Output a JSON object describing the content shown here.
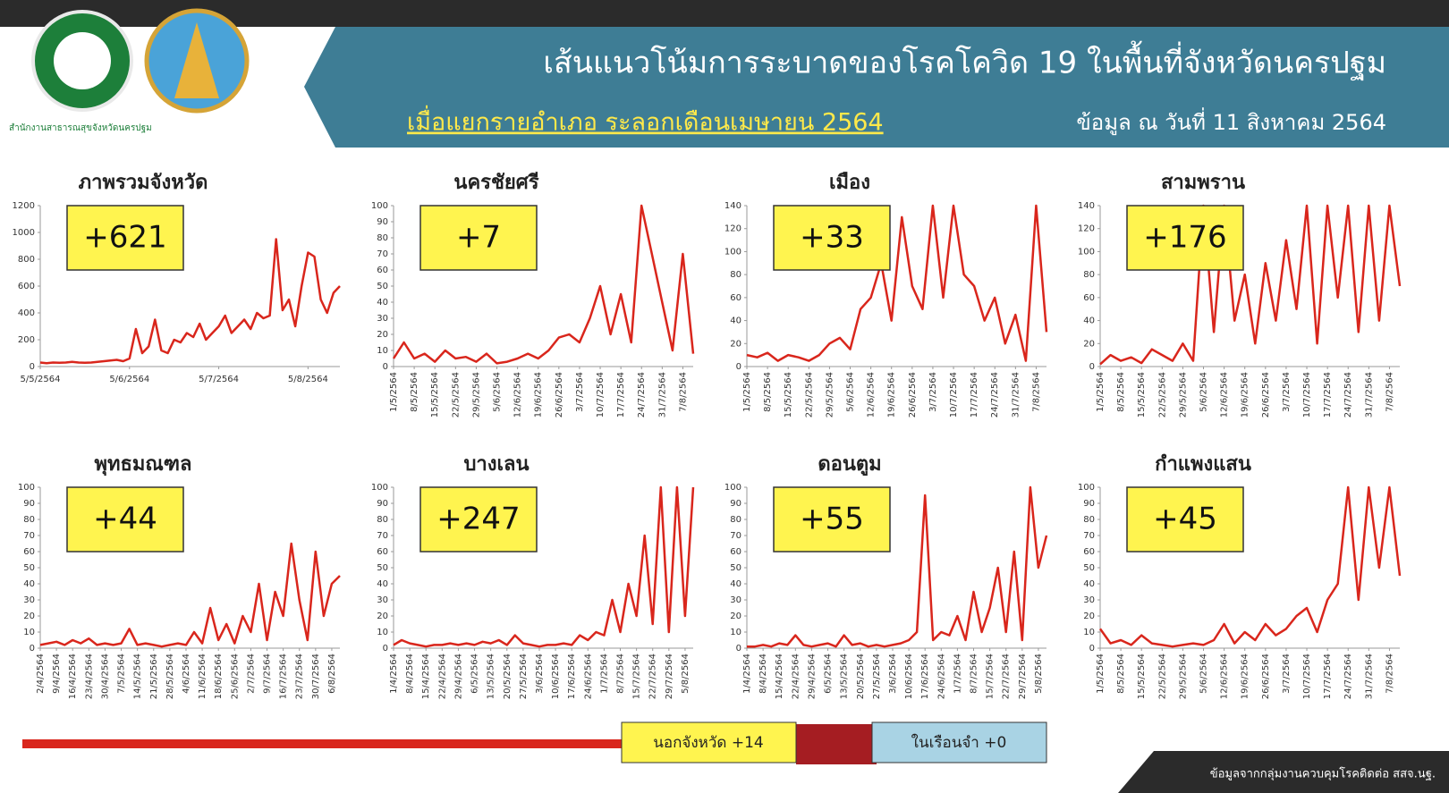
{
  "header": {
    "office": "สำนักงานสาธารณสุขจังหวัดนครปฐม",
    "title": "เส้นแนวโน้มการระบาดของโรคโควิด  19 ในพื้นที่จังหวัดนครปฐม",
    "subtitle": "เมื่อแยกรายอำเภอ ระลอกเดือนเมษายน 2564",
    "date": "ข้อมูล ณ วันที่ 11 สิงหาคม 2564"
  },
  "footer": {
    "outside": "นอกจังหวัด +14",
    "prison": "ในเรือนจำ +0",
    "source": "ข้อมูลจากกลุ่มงานควบคุมโรคติดต่อ สสจ.นฐ."
  },
  "chart_data": [
    {
      "type": "line",
      "title": "ภาพรวมจังหวัด",
      "annotation": "+621",
      "color": "#d9261c",
      "categories": [
        "5/5/2564",
        null,
        null,
        null,
        null,
        null,
        null,
        null,
        null,
        null,
        null,
        null,
        null,
        null,
        "5/6/2564",
        null,
        null,
        null,
        null,
        null,
        null,
        null,
        null,
        null,
        null,
        null,
        null,
        null,
        "5/7/2564",
        null,
        null,
        null,
        null,
        null,
        null,
        null,
        null,
        null,
        null,
        null,
        null,
        null,
        "5/8/2564",
        null,
        null,
        null,
        null,
        null
      ],
      "values": [
        30,
        25,
        30,
        28,
        30,
        35,
        30,
        28,
        30,
        35,
        40,
        45,
        50,
        40,
        60,
        280,
        100,
        150,
        350,
        120,
        100,
        200,
        180,
        250,
        220,
        320,
        200,
        250,
        300,
        380,
        250,
        300,
        350,
        280,
        400,
        360,
        380,
        950,
        420,
        500,
        300,
        600,
        850,
        820,
        500,
        400,
        550,
        600
      ],
      "ylim": [
        0,
        1200
      ],
      "yticks": [
        0,
        200,
        400,
        600,
        800,
        1000,
        1200
      ]
    },
    {
      "type": "line",
      "title": "นครชัยศรี",
      "annotation": "+7",
      "color": "#d9261c",
      "categories": [
        "1/5/2564",
        null,
        "8/5/2564",
        null,
        "15/5/2564",
        null,
        "22/5/2564",
        null,
        "29/5/2564",
        null,
        "5/6/2564",
        null,
        "12/6/2564",
        null,
        "19/6/2564",
        null,
        "26/6/2564",
        null,
        "3/7/2564",
        null,
        "10/7/2564",
        null,
        "17/7/2564",
        null,
        "24/7/2564",
        null,
        "31/7/2564",
        null,
        "7/8/2564",
        null
      ],
      "values": [
        5,
        15,
        5,
        8,
        3,
        10,
        5,
        6,
        3,
        8,
        2,
        3,
        5,
        8,
        5,
        10,
        18,
        20,
        15,
        30,
        50,
        20,
        45,
        15,
        100,
        70,
        40,
        10,
        70,
        8
      ],
      "ylim": [
        0,
        100
      ],
      "yticks": [
        0,
        10,
        20,
        30,
        40,
        50,
        60,
        70,
        80,
        90,
        100
      ]
    },
    {
      "type": "line",
      "title": "เมือง",
      "annotation": "+33",
      "color": "#d9261c",
      "categories": [
        "1/5/2564",
        null,
        "8/5/2564",
        null,
        "15/5/2564",
        null,
        "22/5/2564",
        null,
        "29/5/2564",
        null,
        "5/6/2564",
        null,
        "12/6/2564",
        null,
        "19/6/2564",
        null,
        "26/6/2564",
        null,
        "3/7/2564",
        null,
        "10/7/2564",
        null,
        "17/7/2564",
        null,
        "24/7/2564",
        null,
        "31/7/2564",
        null,
        "7/8/2564",
        null
      ],
      "values": [
        10,
        8,
        12,
        5,
        10,
        8,
        5,
        10,
        20,
        25,
        15,
        50,
        60,
        90,
        40,
        130,
        70,
        50,
        140,
        60,
        140,
        80,
        70,
        40,
        60,
        20,
        45,
        5,
        140,
        30
      ],
      "ylim": [
        0,
        140
      ],
      "yticks": [
        0,
        20,
        40,
        60,
        80,
        100,
        120,
        140
      ]
    },
    {
      "type": "line",
      "title": "สามพราน",
      "annotation": "+176",
      "color": "#d9261c",
      "categories": [
        "1/5/2564",
        null,
        "8/5/2564",
        null,
        "15/5/2564",
        null,
        "22/5/2564",
        null,
        "29/5/2564",
        null,
        "5/6/2564",
        null,
        "12/6/2564",
        null,
        "19/6/2564",
        null,
        "26/6/2564",
        null,
        "3/7/2564",
        null,
        "10/7/2564",
        null,
        "17/7/2564",
        null,
        "24/7/2564",
        null,
        "31/7/2564",
        null,
        "7/8/2564",
        null
      ],
      "values": [
        2,
        10,
        5,
        8,
        3,
        15,
        10,
        5,
        20,
        5,
        140,
        30,
        140,
        40,
        80,
        20,
        90,
        40,
        110,
        50,
        140,
        20,
        140,
        60,
        140,
        30,
        140,
        40,
        140,
        70
      ],
      "ylim": [
        0,
        140
      ],
      "yticks": [
        0,
        20,
        40,
        60,
        80,
        100,
        120,
        140
      ]
    },
    {
      "type": "line",
      "title": "พุทธมณฑล",
      "annotation": "+44",
      "color": "#d9261c",
      "categories": [
        "2/4/2564",
        null,
        "9/4/2564",
        null,
        "16/4/2564",
        null,
        "23/4/2564",
        null,
        "30/4/2564",
        null,
        "7/5/2564",
        null,
        "14/5/2564",
        null,
        "21/5/2564",
        null,
        "28/5/2564",
        null,
        "4/6/2564",
        null,
        "11/6/2564",
        null,
        "18/6/2564",
        null,
        "25/6/2564",
        null,
        "2/7/2564",
        null,
        "9/7/2564",
        null,
        "16/7/2564",
        null,
        "23/7/2564",
        null,
        "30/7/2564",
        null,
        "6/8/2564",
        null
      ],
      "values": [
        2,
        3,
        4,
        2,
        5,
        3,
        6,
        2,
        3,
        2,
        3,
        12,
        2,
        3,
        2,
        1,
        2,
        3,
        2,
        10,
        3,
        25,
        5,
        15,
        3,
        20,
        10,
        40,
        5,
        35,
        20,
        65,
        30,
        5,
        60,
        20,
        40,
        45
      ],
      "ylim": [
        0,
        100
      ],
      "yticks": [
        0,
        10,
        20,
        30,
        40,
        50,
        60,
        70,
        80,
        90,
        100
      ]
    },
    {
      "type": "line",
      "title": "บางเลน",
      "annotation": "+247",
      "color": "#d9261c",
      "categories": [
        "1/4/2564",
        null,
        "8/4/2564",
        null,
        "15/4/2564",
        null,
        "22/4/2564",
        null,
        "29/4/2564",
        null,
        "6/5/2564",
        null,
        "13/5/2564",
        null,
        "20/5/2564",
        null,
        "27/5/2564",
        null,
        "3/6/2564",
        null,
        "10/6/2564",
        null,
        "17/6/2564",
        null,
        "24/6/2564",
        null,
        "1/7/2564",
        null,
        "8/7/2564",
        null,
        "15/7/2564",
        null,
        "22/7/2564",
        null,
        "29/7/2564",
        null,
        "5/8/2564",
        null
      ],
      "values": [
        2,
        5,
        3,
        2,
        1,
        2,
        2,
        3,
        2,
        3,
        2,
        4,
        3,
        5,
        2,
        8,
        3,
        2,
        1,
        2,
        2,
        3,
        2,
        8,
        5,
        10,
        8,
        30,
        10,
        40,
        20,
        70,
        15,
        100,
        10,
        100,
        20,
        100
      ],
      "ylim": [
        0,
        100
      ],
      "yticks": [
        0,
        10,
        20,
        30,
        40,
        50,
        60,
        70,
        80,
        90,
        100
      ]
    },
    {
      "type": "line",
      "title": "ดอนตูม",
      "annotation": "+55",
      "color": "#d9261c",
      "categories": [
        "1/4/2564",
        null,
        "8/4/2564",
        null,
        "15/4/2564",
        null,
        "22/4/2564",
        null,
        "29/4/2564",
        null,
        "6/5/2564",
        null,
        "13/5/2564",
        null,
        "20/5/2564",
        null,
        "27/5/2564",
        null,
        "3/6/2564",
        null,
        "10/6/2564",
        null,
        "17/6/2564",
        null,
        "24/6/2564",
        null,
        "1/7/2564",
        null,
        "8/7/2564",
        null,
        "15/7/2564",
        null,
        "22/7/2564",
        null,
        "29/7/2564",
        null,
        "5/8/2564",
        null
      ],
      "values": [
        1,
        1,
        2,
        1,
        3,
        2,
        8,
        2,
        1,
        2,
        3,
        1,
        8,
        2,
        3,
        1,
        2,
        1,
        2,
        3,
        5,
        10,
        95,
        5,
        10,
        8,
        20,
        5,
        35,
        10,
        25,
        50,
        10,
        60,
        5,
        100,
        50,
        70
      ],
      "ylim": [
        0,
        100
      ],
      "yticks": [
        0,
        10,
        20,
        30,
        40,
        50,
        60,
        70,
        80,
        90,
        100
      ]
    },
    {
      "type": "line",
      "title": "กำแพงแสน",
      "annotation": "+45",
      "color": "#d9261c",
      "categories": [
        "1/5/2564",
        null,
        "8/5/2564",
        null,
        "15/5/2564",
        null,
        "22/5/2564",
        null,
        "29/5/2564",
        null,
        "5/6/2564",
        null,
        "12/6/2564",
        null,
        "19/6/2564",
        null,
        "26/6/2564",
        null,
        "3/7/2564",
        null,
        "10/7/2564",
        null,
        "17/7/2564",
        null,
        "24/7/2564",
        null,
        "31/7/2564",
        null,
        "7/8/2564",
        null
      ],
      "values": [
        12,
        3,
        5,
        2,
        8,
        3,
        2,
        1,
        2,
        3,
        2,
        5,
        15,
        3,
        10,
        5,
        15,
        8,
        12,
        20,
        25,
        10,
        30,
        40,
        100,
        30,
        100,
        50,
        100,
        45
      ],
      "ylim": [
        0,
        100
      ],
      "yticks": [
        0,
        10,
        20,
        30,
        40,
        50,
        60,
        70,
        80,
        90,
        100
      ]
    }
  ]
}
